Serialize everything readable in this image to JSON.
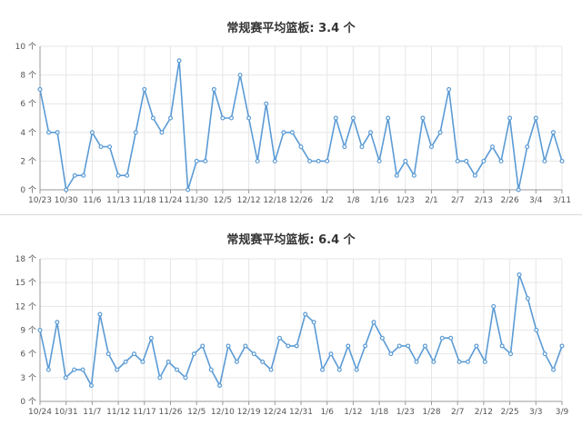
{
  "chart_data": [
    {
      "type": "line",
      "title": "常规赛平均篮板: 3.4 个",
      "ylim": [
        0,
        10
      ],
      "yticks": [
        "0 个",
        "2 个",
        "4 个",
        "6 个",
        "8 个",
        "10 个"
      ],
      "xticks": [
        "10/23",
        "10/30",
        "11/6",
        "11/13",
        "11/18",
        "11/24",
        "11/30",
        "12/5",
        "12/12",
        "12/18",
        "12/26",
        "1/2",
        "1/8",
        "1/16",
        "1/23",
        "2/1",
        "2/7",
        "2/13",
        "2/26",
        "3/4",
        "3/11"
      ],
      "grid": true,
      "color": "#5b9bd5",
      "values": [
        7,
        4,
        4,
        0,
        1,
        1,
        4,
        3,
        3,
        1,
        1,
        4,
        7,
        5,
        4,
        5,
        9,
        0,
        2,
        2,
        7,
        5,
        5,
        8,
        5,
        2,
        6,
        2,
        4,
        4,
        3,
        2,
        2,
        2,
        5,
        3,
        5,
        3,
        4,
        2,
        5,
        1,
        2,
        1,
        5,
        3,
        4,
        7,
        2,
        2,
        1,
        2,
        3,
        2,
        5,
        0,
        3,
        5,
        2,
        4,
        2
      ]
    },
    {
      "type": "line",
      "title": "常规赛平均篮板: 6.4 个",
      "ylim": [
        0,
        18
      ],
      "yticks": [
        "0 个",
        "3 个",
        "6 个",
        "9 个",
        "12 个",
        "15 个",
        "18 个"
      ],
      "xticks": [
        "10/24",
        "10/31",
        "11/7",
        "11/12",
        "11/17",
        "11/26",
        "12/5",
        "12/10",
        "12/19",
        "12/24",
        "12/31",
        "1/6",
        "1/12",
        "1/18",
        "1/23",
        "1/28",
        "2/7",
        "2/12",
        "2/25",
        "3/3",
        "3/9"
      ],
      "grid": true,
      "color": "#5b9bd5",
      "values": [
        9,
        4,
        10,
        3,
        4,
        4,
        2,
        11,
        6,
        4,
        5,
        6,
        5,
        8,
        3,
        5,
        4,
        3,
        6,
        7,
        4,
        2,
        7,
        5,
        7,
        6,
        5,
        4,
        8,
        7,
        7,
        11,
        10,
        4,
        6,
        4,
        7,
        4,
        7,
        10,
        8,
        6,
        7,
        7,
        5,
        7,
        5,
        8,
        8,
        5,
        5,
        7,
        5,
        12,
        7,
        6,
        16,
        13,
        9,
        6,
        4,
        7
      ]
    }
  ]
}
